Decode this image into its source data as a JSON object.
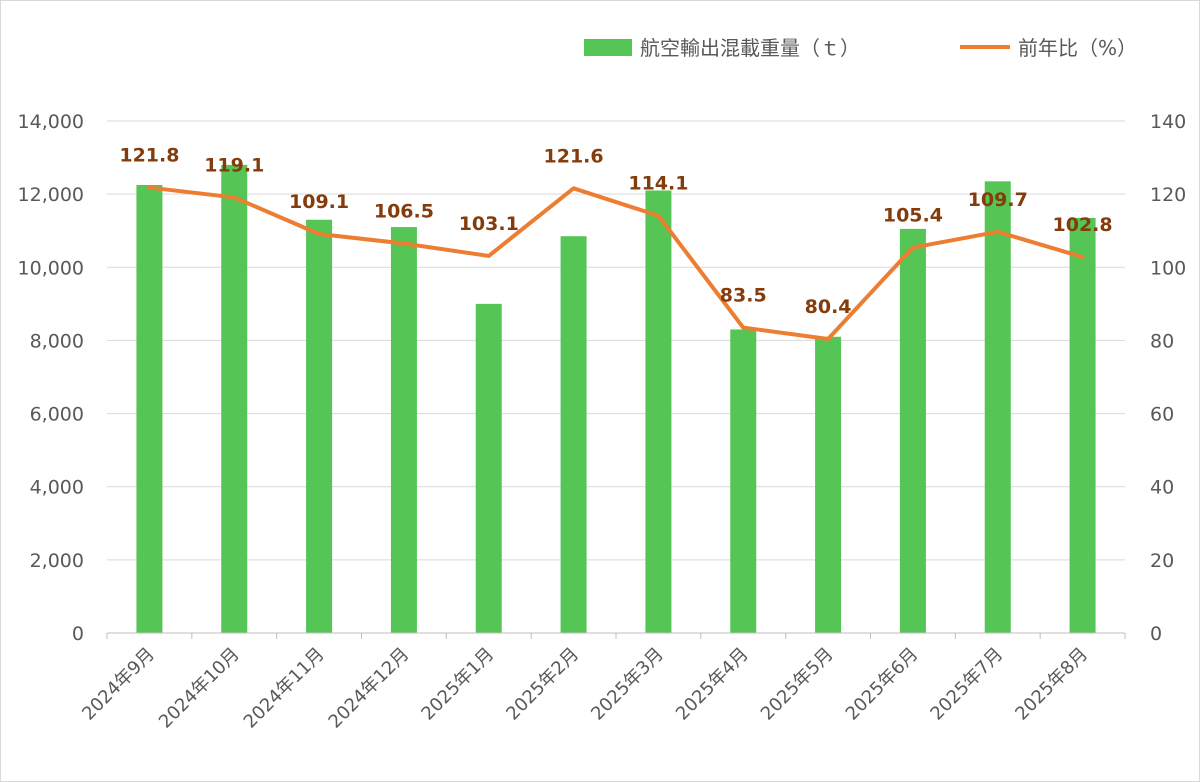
{
  "chart_data": {
    "type": "bar+line",
    "categories": [
      "2024年9月",
      "2024年10月",
      "2024年11月",
      "2024年12月",
      "2025年1月",
      "2025年2月",
      "2025年3月",
      "2025年4月",
      "2025年5月",
      "2025年6月",
      "2025年7月",
      "2025年8月"
    ],
    "series": [
      {
        "name": "航空輸出混載重量（ｔ）",
        "type": "bar",
        "axis": "left",
        "color": "#55c555",
        "values": [
          12250,
          12800,
          11300,
          11100,
          9000,
          10850,
          12100,
          8300,
          8100,
          11050,
          12350,
          11350
        ]
      },
      {
        "name": "前年比（%）",
        "type": "line",
        "axis": "right",
        "color": "#ed7d31",
        "values": [
          121.8,
          119.1,
          109.1,
          106.5,
          103.1,
          121.6,
          114.1,
          83.5,
          80.4,
          105.4,
          109.7,
          102.8
        ],
        "labels": [
          "121.8",
          "119.1",
          "109.1",
          "106.5",
          "103.1",
          "121.6",
          "114.1",
          "83.5",
          "80.4",
          "105.4",
          "109.7",
          "102.8"
        ]
      }
    ],
    "y_left": {
      "lim": [
        0,
        14000
      ],
      "ticks": [
        "0",
        "2,000",
        "4,000",
        "6,000",
        "8,000",
        "10,000",
        "12,000",
        "14,000"
      ]
    },
    "y_right": {
      "lim": [
        0,
        140
      ],
      "ticks": [
        "0",
        "20",
        "40",
        "60",
        "80",
        "100",
        "120",
        "140"
      ]
    },
    "grid": true,
    "legend_position": "top-right"
  }
}
